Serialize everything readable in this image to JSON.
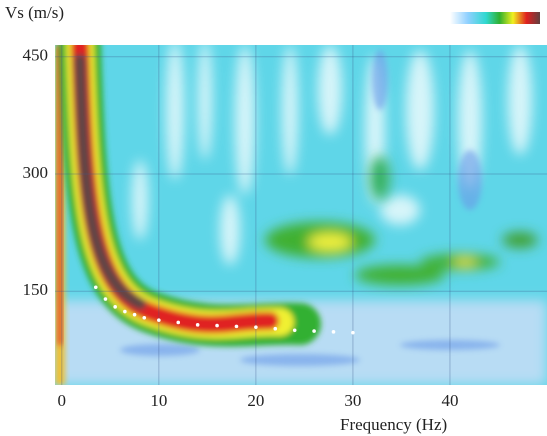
{
  "chart_data": {
    "type": "scatter",
    "ylabel": "Vs (m/s)",
    "xlabel": "Frequency (Hz)",
    "xlim": [
      -0.7,
      50
    ],
    "xticks": [
      0,
      10,
      20,
      30,
      40
    ],
    "ylim": [
      30,
      465
    ],
    "yticks": [
      150,
      300,
      450
    ],
    "grid": true,
    "color": "#ffffff",
    "x": [
      3.5,
      4.5,
      5.5,
      6.5,
      7.5,
      8.5,
      10,
      12,
      14,
      16,
      18,
      20,
      22,
      24,
      26,
      28,
      30
    ],
    "values": [
      155,
      140,
      130,
      124,
      120,
      116,
      113,
      110,
      107,
      106,
      105,
      104,
      102,
      100,
      99,
      98,
      97
    ]
  }
}
